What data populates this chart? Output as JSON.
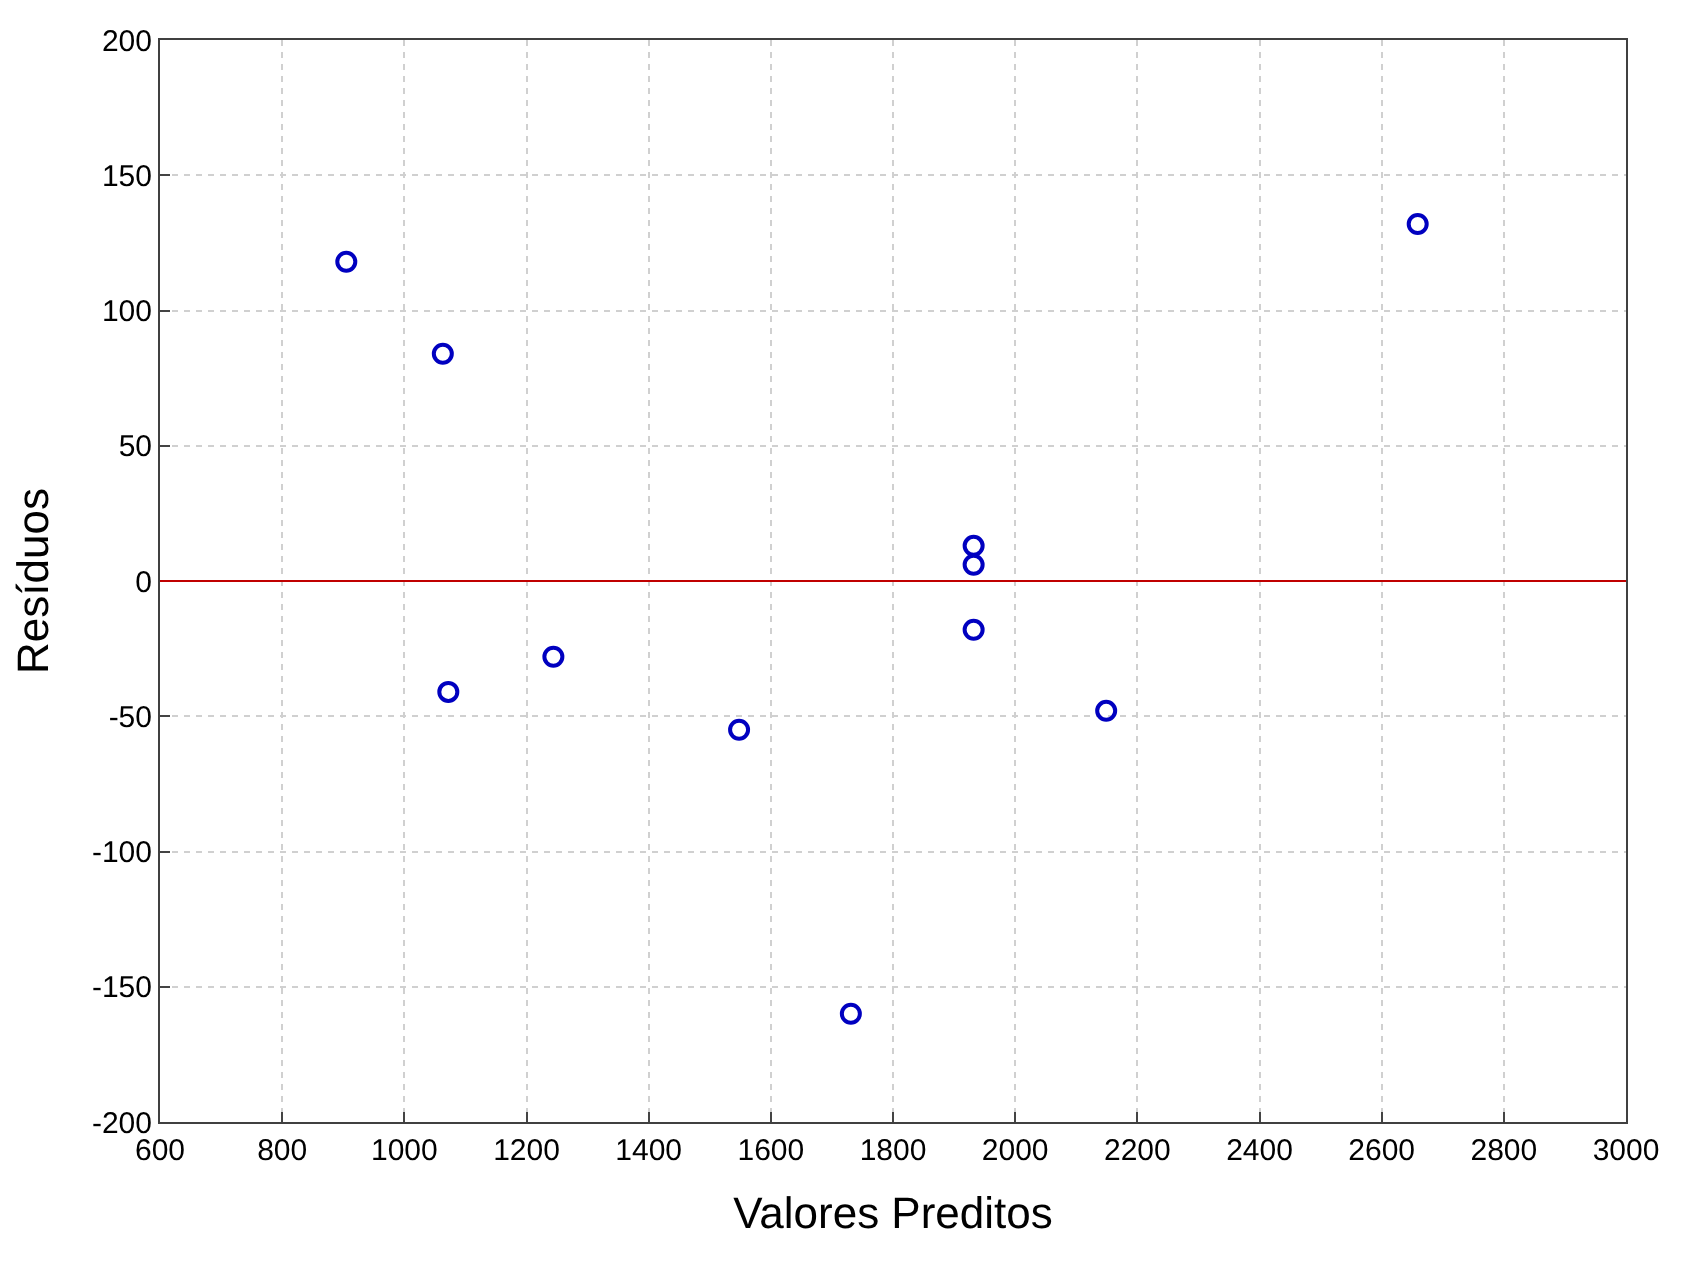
{
  "chart_data": {
    "type": "scatter",
    "xlabel": "Valores Preditos",
    "ylabel": "Resíduos",
    "x": [
      905,
      1063,
      1072,
      1244,
      1548,
      1731,
      1932,
      1932,
      1932,
      2149,
      2659
    ],
    "series": [
      {
        "color": "#0000c0",
        "values": [
          118,
          84,
          -41,
          -28,
          -55,
          -160,
          13,
          6,
          -18,
          -48,
          132
        ]
      }
    ],
    "xlim": [
      600,
      3000
    ],
    "xticks": [
      600,
      800,
      1000,
      1200,
      1400,
      1600,
      1800,
      2000,
      2200,
      2400,
      2600,
      2800,
      3000
    ],
    "ylim": [
      -200,
      200
    ],
    "yticks": [
      -200,
      -150,
      -100,
      -50,
      0,
      50,
      100,
      150,
      200
    ],
    "ref_lines": [
      {
        "axis": "y",
        "value": 0,
        "color": "#c00000"
      }
    ],
    "grid": true,
    "marker": "circle"
  }
}
